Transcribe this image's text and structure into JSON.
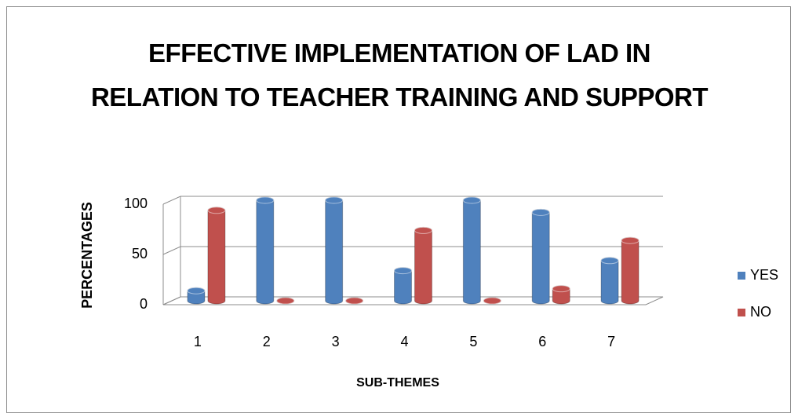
{
  "chart_data": {
    "type": "bar3d",
    "title": "EFFECTIVE IMPLEMENTATION OF LAD IN RELATION TO TEACHER TRAINING AND SUPPORT",
    "x_label": "SUB-THEMES",
    "y_label": "PERCENTAGES",
    "categories": [
      "1",
      "2",
      "3",
      "4",
      "5",
      "6",
      "7"
    ],
    "series": [
      {
        "name": "YES",
        "color": "#4f81bd",
        "values": [
          10,
          100,
          100,
          30,
          100,
          88,
          40
        ]
      },
      {
        "name": "NO",
        "color": "#c0504d",
        "values": [
          90,
          0,
          0,
          70,
          0,
          12,
          60
        ]
      }
    ],
    "ylim": [
      0,
      100
    ],
    "yticks": [
      0,
      50,
      100
    ],
    "grid": true,
    "legend": "right"
  }
}
